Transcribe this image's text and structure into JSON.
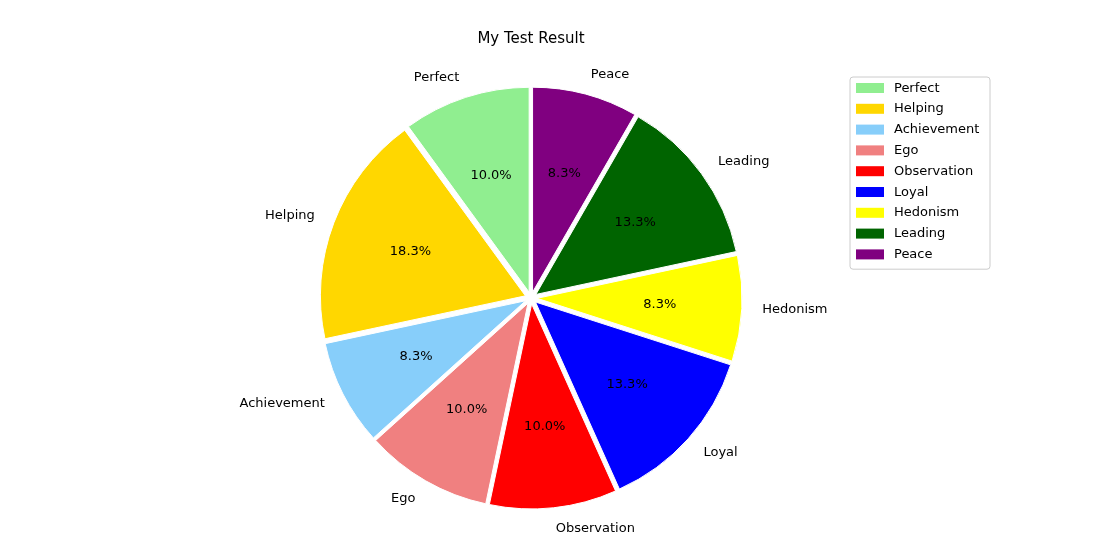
{
  "chart_data": {
    "type": "pie",
    "title": "My Test Result",
    "categories": [
      "Perfect",
      "Helping",
      "Achievement",
      "Ego",
      "Observation",
      "Loyal",
      "Hedonism",
      "Leading",
      "Peace"
    ],
    "values": [
      10.0,
      18.3,
      8.3,
      10.0,
      10.0,
      13.3,
      8.3,
      13.3,
      8.3
    ],
    "value_labels": [
      "10.0%",
      "18.3%",
      "8.3%",
      "10.0%",
      "10.0%",
      "13.3%",
      "8.3%",
      "13.3%",
      "8.3%"
    ],
    "colors": [
      "#90ee90",
      "#ffd700",
      "#87cefa",
      "#f08080",
      "#ff0000",
      "#0000ff",
      "#ffff00",
      "#006400",
      "#800080"
    ],
    "legend": "top right"
  }
}
